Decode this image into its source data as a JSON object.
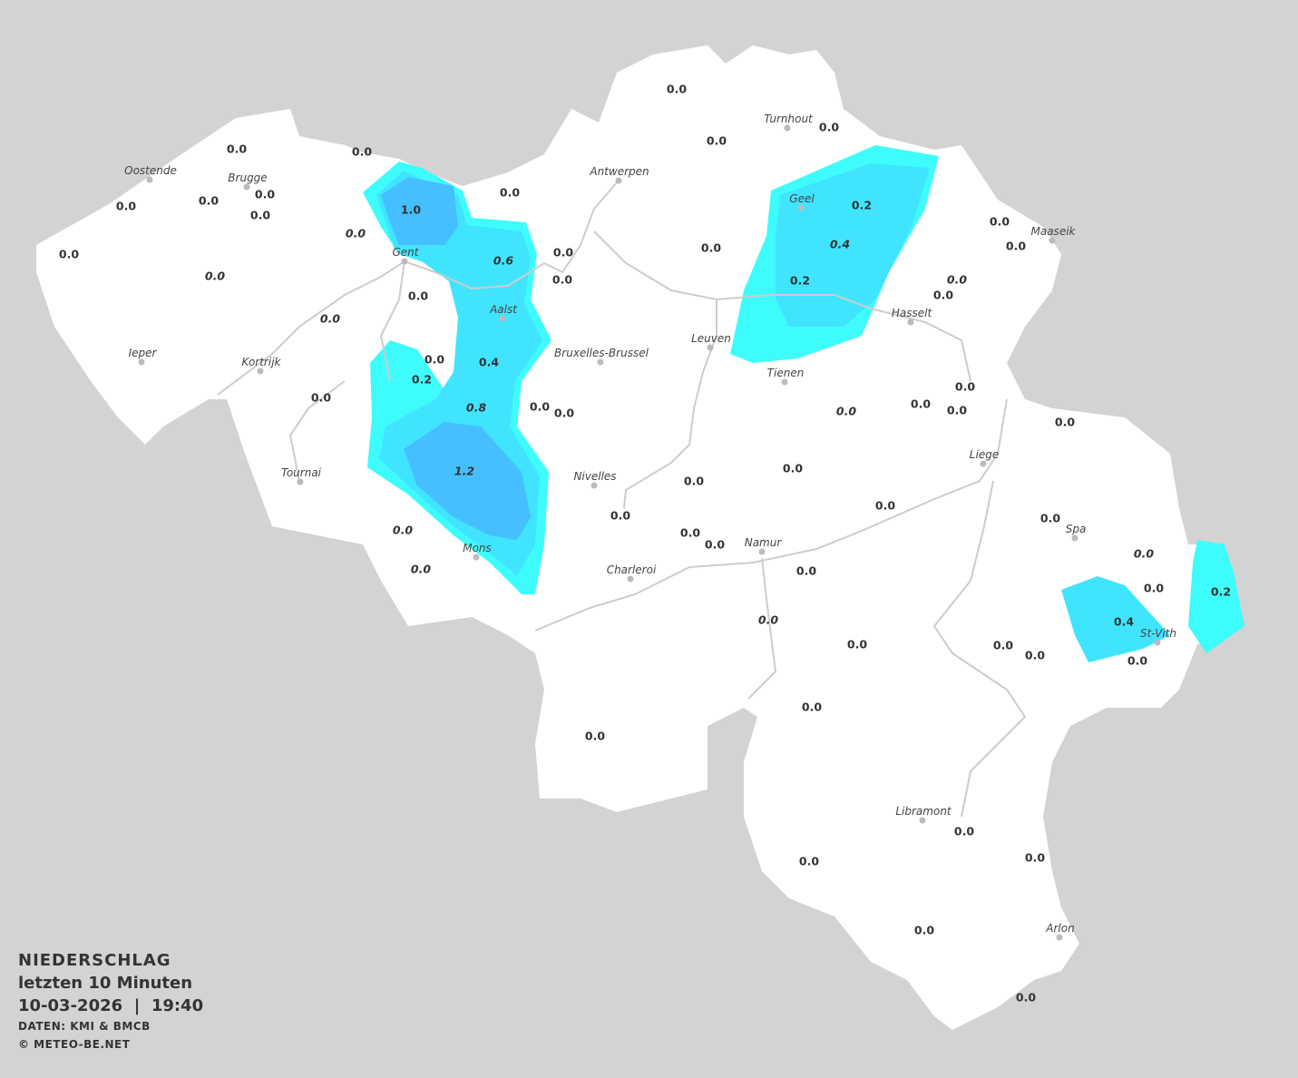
{
  "title": "NIEDERSCHLAG",
  "subtitle": "letzten 10 Minuten",
  "date": "10-03-2026",
  "separator": "|",
  "time": "19:40",
  "source": "DATEN: KMI & BMCB",
  "copyright": "© METEO-BE.NET",
  "colors": {
    "background": "#d3d3d3",
    "land": "#ffffff",
    "rivers": "#cccccc",
    "precip_0_2": "#3ffcfc",
    "precip_0_4": "#40e4ff",
    "precip_1_0": "#45bfff"
  },
  "cities": [
    "Oostende",
    "Brugge",
    "Gent",
    "Antwerpen",
    "Turnhout",
    "Geel",
    "Maaseik",
    "Hasselt",
    "Leuven",
    "Aalst",
    "Bruxelles-Brussel",
    "Tienen",
    "Ieper",
    "Kortrijk",
    "Tournai",
    "Nivelles",
    "Liege",
    "Mons",
    "Namur",
    "Charleroi",
    "Spa",
    "St-Vith",
    "Libramont",
    "Arlon"
  ],
  "values": [
    "0.0",
    "0.0",
    "0.0",
    "0.0",
    "0.0",
    "0.0",
    "0.0",
    "0.0",
    "0.0",
    "0.0",
    "0.0",
    "0.0",
    "1.0",
    "0.0",
    "0.6",
    "0.0",
    "0.0",
    "0.0",
    "0.0",
    "0.0",
    "0.4",
    "0.2",
    "0.0",
    "0.8",
    "0.0",
    "0.0",
    "1.2",
    "0.0",
    "0.0",
    "0.0",
    "0.0",
    "0.0",
    "0.0",
    "0.0",
    "0.0",
    "0.0",
    "0.0",
    "0.0",
    "0.0",
    "0.0",
    "0.2",
    "0.4",
    "0.2",
    "0.0",
    "0.0",
    "0.0",
    "0.0",
    "0.0",
    "0.0",
    "0.0",
    "0.0",
    "0.2",
    "0.4",
    "0.0",
    "0.0",
    "0.0",
    "0.0",
    "0.0",
    "0.0",
    "0.0",
    "0.0",
    "0.0",
    "0.0",
    "0.0",
    "0.0",
    "0.0"
  ]
}
